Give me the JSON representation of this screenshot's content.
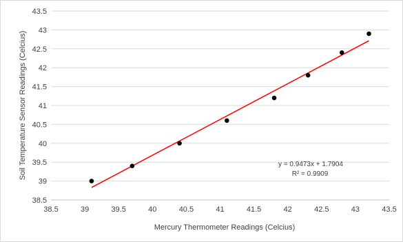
{
  "chart_data": {
    "type": "scatter",
    "title": "",
    "xlabel": "Mercury Thermometer Readings (Celcius)",
    "ylabel": "Soil Temperature Sensor Readings (Celcius)",
    "xlim": [
      38.5,
      43.5
    ],
    "ylim": [
      38.5,
      43.5
    ],
    "xticks": [
      "38.5",
      "39",
      "39.5",
      "40",
      "40.5",
      "41",
      "41.5",
      "42",
      "42.5",
      "43",
      "43.5"
    ],
    "yticks": [
      "38.5",
      "39",
      "39.5",
      "40",
      "40.5",
      "41",
      "41.5",
      "42",
      "42.5",
      "43",
      "43.5"
    ],
    "grid": "horizontal",
    "legend": "none",
    "series": [
      {
        "marker_color": "#000000",
        "x": [
          39.1,
          39.7,
          40.4,
          41.1,
          41.8,
          42.3,
          42.8,
          43.2
        ],
        "y": [
          39.0,
          39.4,
          40.0,
          40.6,
          41.2,
          41.8,
          42.4,
          42.9
        ]
      }
    ],
    "trendline": {
      "type": "linear",
      "color": "#ff0000",
      "slope": 0.9473,
      "intercept": 1.7904,
      "x_range": [
        39.1,
        43.2
      ],
      "equation_label": "y = 0.9473x + 1.7904",
      "r2_label": "R² = 0.9909"
    }
  }
}
